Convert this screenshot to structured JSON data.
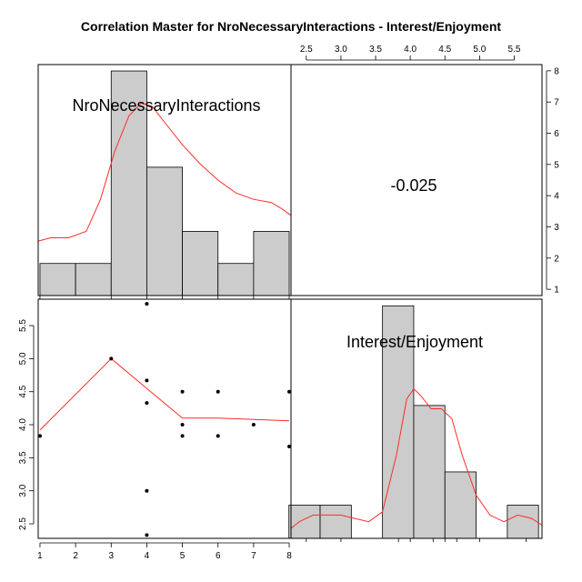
{
  "chart_data": {
    "type": "scatterplot-matrix",
    "title": "Correlation Master for NroNecessaryInteractions - Interest/Enjoyment",
    "variables": [
      "NroNecessaryInteractions",
      "Interest/Enjoyment"
    ],
    "correlation": "-0.025",
    "axes": {
      "var1": {
        "range": [
          0.95,
          8.05
        ],
        "ticks": [
          1,
          2,
          3,
          4,
          5,
          6,
          7,
          8
        ],
        "tick_labels": [
          "1",
          "2",
          "3",
          "4",
          "5",
          "6",
          "7",
          "8"
        ]
      },
      "var2": {
        "range": [
          2.28,
          5.9
        ],
        "ticks": [
          2.5,
          3.0,
          3.5,
          4.0,
          4.5,
          5.0,
          5.5
        ],
        "tick_labels": [
          "2.5",
          "3.0",
          "3.5",
          "4.0",
          "4.5",
          "5.0",
          "5.5"
        ]
      },
      "right_counts": {
        "range": [
          0.8,
          8.2
        ],
        "ticks": [
          1,
          2,
          3,
          4,
          5,
          6,
          7,
          8
        ],
        "tick_labels": [
          "1",
          "2",
          "3",
          "4",
          "5",
          "6",
          "7",
          "8"
        ]
      }
    },
    "hist1": {
      "breaks": [
        1,
        2,
        3,
        4,
        5,
        6,
        7,
        8
      ],
      "counts": [
        1,
        1,
        7,
        4,
        2,
        1,
        2
      ],
      "maxcount": 7.2,
      "rug": [
        1,
        3,
        4,
        5,
        6,
        7,
        8
      ],
      "density": [
        [
          0.96,
          1.7
        ],
        [
          1.3,
          1.8
        ],
        [
          1.8,
          1.8
        ],
        [
          2.3,
          2.0
        ],
        [
          2.7,
          3.0
        ],
        [
          3.1,
          4.5
        ],
        [
          3.5,
          5.6
        ],
        [
          3.85,
          6.0
        ],
        [
          4.15,
          5.9
        ],
        [
          4.5,
          5.4
        ],
        [
          5.0,
          4.7
        ],
        [
          5.5,
          4.1
        ],
        [
          6.0,
          3.6
        ],
        [
          6.5,
          3.2
        ],
        [
          7.0,
          3.0
        ],
        [
          7.5,
          2.9
        ],
        [
          7.8,
          2.7
        ],
        [
          8.05,
          2.5
        ]
      ]
    },
    "hist2": {
      "breaks": [
        2.25,
        2.7,
        3.15,
        3.6,
        4.05,
        4.5,
        4.95,
        5.4,
        5.85
      ],
      "counts": [
        1,
        1,
        0,
        7,
        4,
        2,
        0,
        1
      ],
      "maxcount": 7.2,
      "rug": [
        2.5,
        3.0,
        3.83,
        4.0,
        4.33,
        4.5,
        4.67,
        5.0,
        5.67
      ],
      "density": [
        [
          2.28,
          0.3
        ],
        [
          2.4,
          0.5
        ],
        [
          2.6,
          0.7
        ],
        [
          2.8,
          0.7
        ],
        [
          3.0,
          0.7
        ],
        [
          3.2,
          0.6
        ],
        [
          3.4,
          0.5
        ],
        [
          3.6,
          0.8
        ],
        [
          3.8,
          2.5
        ],
        [
          3.95,
          4.2
        ],
        [
          4.05,
          4.5
        ],
        [
          4.15,
          4.3
        ],
        [
          4.3,
          3.9
        ],
        [
          4.45,
          3.9
        ],
        [
          4.6,
          3.6
        ],
        [
          4.75,
          2.5
        ],
        [
          4.95,
          1.3
        ],
        [
          5.15,
          0.7
        ],
        [
          5.35,
          0.5
        ],
        [
          5.55,
          0.7
        ],
        [
          5.75,
          0.6
        ],
        [
          5.9,
          0.4
        ]
      ]
    },
    "scatter": {
      "points": [
        [
          1,
          3.83
        ],
        [
          3,
          5.0
        ],
        [
          4,
          5.83
        ],
        [
          4,
          4.67
        ],
        [
          4,
          4.33
        ],
        [
          4,
          3.0
        ],
        [
          4,
          2.33
        ],
        [
          5,
          4.5
        ],
        [
          5,
          4.0
        ],
        [
          5,
          3.83
        ],
        [
          6,
          4.5
        ],
        [
          6,
          3.83
        ],
        [
          7,
          4.0
        ],
        [
          8,
          4.5
        ],
        [
          8,
          3.67
        ]
      ],
      "loess": [
        [
          1,
          3.92
        ],
        [
          3,
          5.0
        ],
        [
          4,
          4.55
        ],
        [
          5,
          4.1
        ],
        [
          6,
          4.1
        ],
        [
          7,
          4.08
        ],
        [
          8,
          4.06
        ]
      ]
    },
    "colors": {
      "bar_fill": "#cccccc",
      "line": "#ff2b2b",
      "point": "#000000"
    }
  }
}
